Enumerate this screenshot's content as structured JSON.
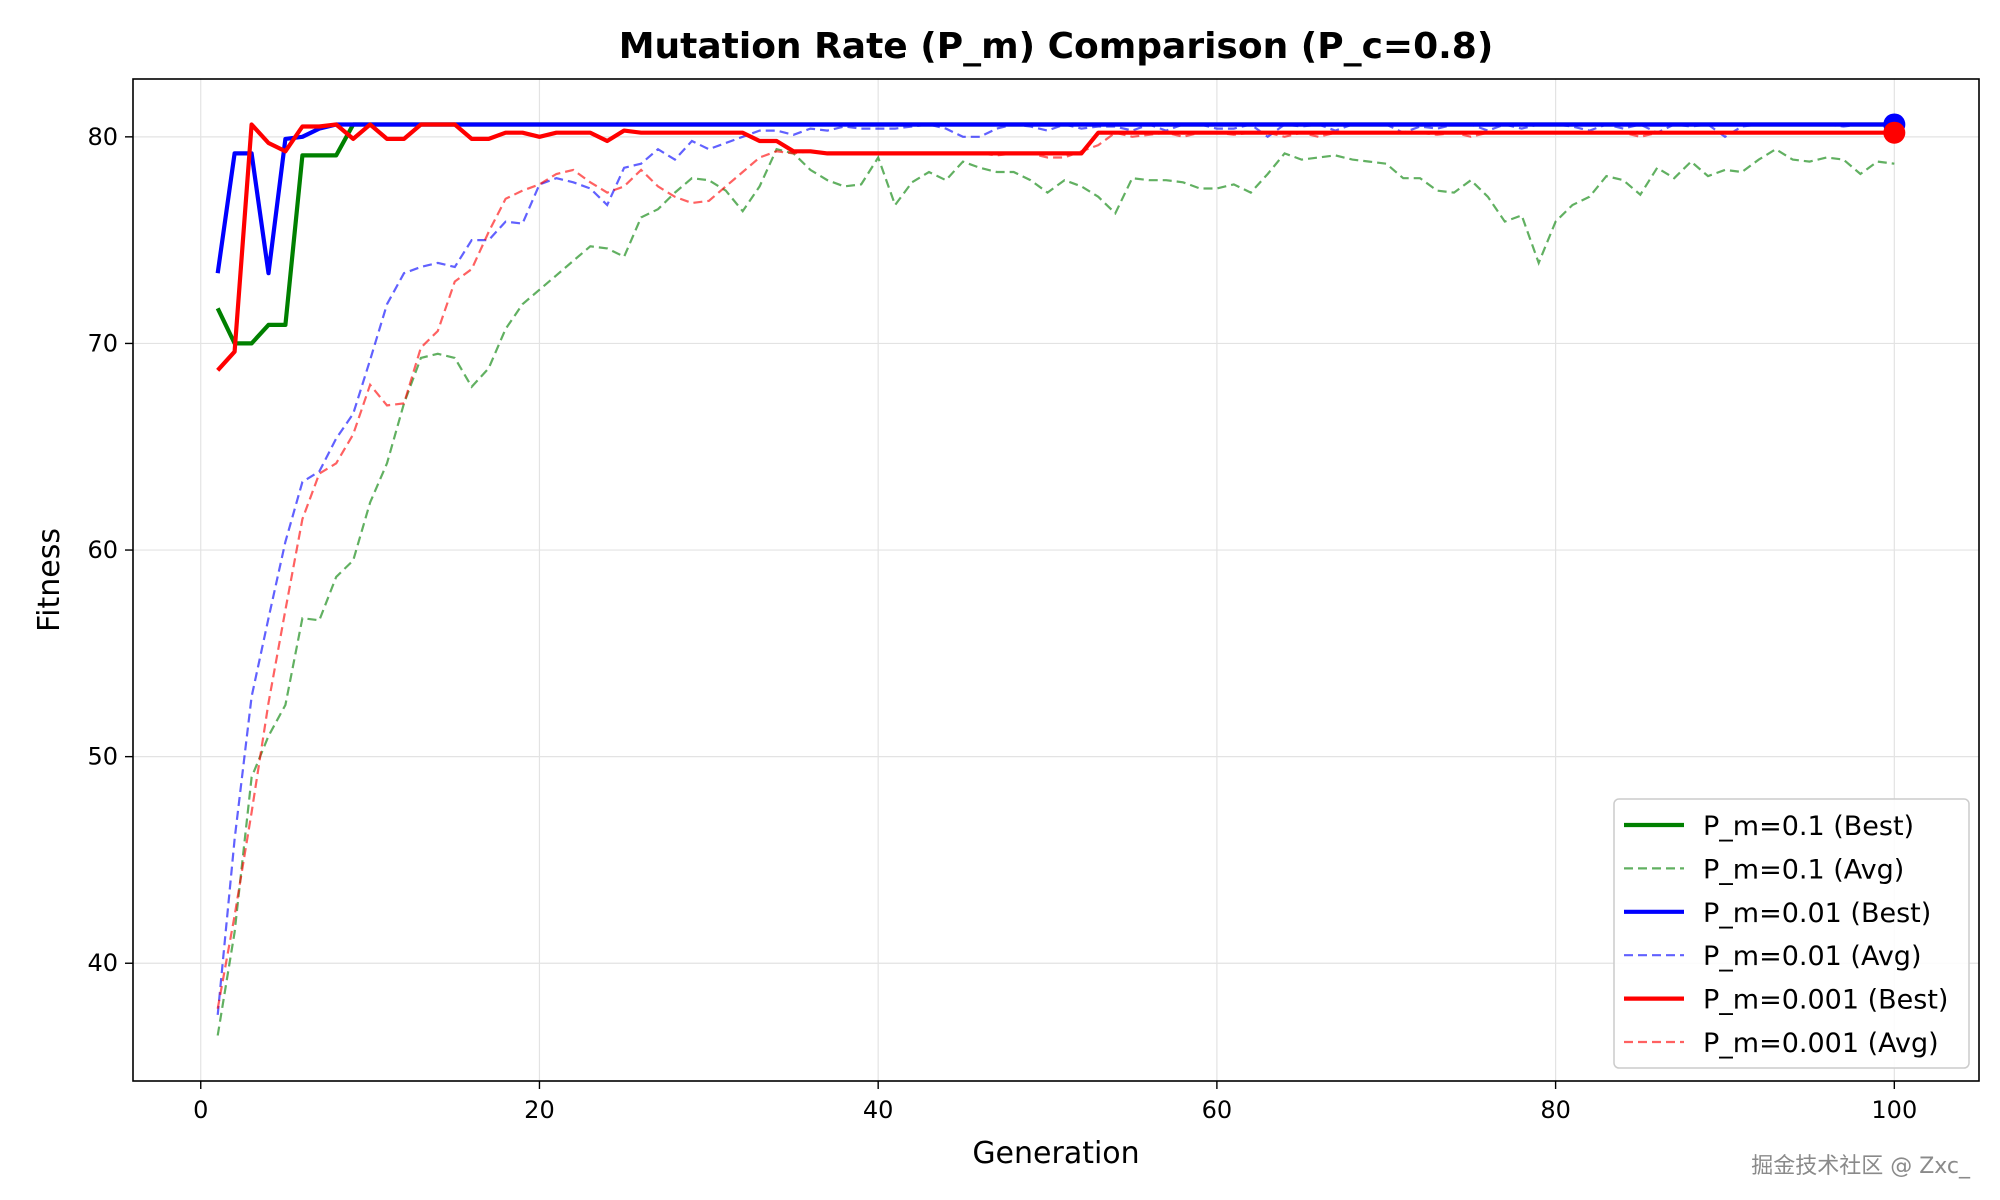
{
  "chart_data": {
    "type": "line",
    "title": "Mutation Rate (P_m) Comparison (P_c=0.8)",
    "xlabel": "Generation",
    "ylabel": "Fitness",
    "xlim": [
      -4,
      105
    ],
    "ylim": [
      34.3,
      82.8
    ],
    "x_ticks": [
      0,
      20,
      40,
      60,
      80,
      100
    ],
    "y_ticks": [
      40,
      50,
      60,
      70,
      80
    ],
    "grid": true,
    "legend_position": "lower-right",
    "colors": {
      "green": "#008000",
      "blue": "#0000ff",
      "red": "#ff0000"
    },
    "x": [
      1,
      2,
      3,
      4,
      5,
      6,
      7,
      8,
      9,
      10,
      11,
      12,
      13,
      14,
      15,
      16,
      17,
      18,
      19,
      20,
      21,
      22,
      23,
      24,
      25,
      26,
      27,
      28,
      29,
      30,
      31,
      32,
      33,
      34,
      35,
      36,
      37,
      38,
      39,
      40,
      41,
      42,
      43,
      44,
      45,
      46,
      47,
      48,
      49,
      50,
      51,
      52,
      53,
      54,
      55,
      56,
      57,
      58,
      59,
      60,
      61,
      62,
      63,
      64,
      65,
      66,
      67,
      68,
      69,
      70,
      71,
      72,
      73,
      74,
      75,
      76,
      77,
      78,
      79,
      80,
      81,
      82,
      83,
      84,
      85,
      86,
      87,
      88,
      89,
      90,
      91,
      92,
      93,
      94,
      95,
      96,
      97,
      98,
      99,
      100
    ],
    "series": [
      {
        "name": "P_m=0.1 (Best)",
        "color": "#008000",
        "style": "solid",
        "values": [
          71.7,
          70.0,
          70.0,
          70.9,
          70.9,
          79.1,
          79.1,
          79.1,
          80.6,
          80.6,
          80.6,
          80.6,
          80.6,
          80.6,
          80.6,
          80.6,
          80.6,
          80.6,
          80.6,
          80.6,
          80.6,
          80.6,
          80.6,
          80.6,
          80.6,
          80.6,
          80.6,
          80.6,
          80.6,
          80.6,
          80.6,
          80.6,
          80.6,
          80.6,
          80.6,
          80.6,
          80.6,
          80.6,
          80.6,
          80.6,
          80.6,
          80.6,
          80.6,
          80.6,
          80.6,
          80.6,
          80.6,
          80.6,
          80.6,
          80.6,
          80.6,
          80.6,
          80.6,
          80.6,
          80.6,
          80.6,
          80.6,
          80.6,
          80.6,
          80.6,
          80.6,
          80.6,
          80.6,
          80.6,
          80.6,
          80.6,
          80.6,
          80.6,
          80.6,
          80.6,
          80.6,
          80.6,
          80.6,
          80.6,
          80.6,
          80.6,
          80.6,
          80.6,
          80.6,
          80.6,
          80.6,
          80.6,
          80.6,
          80.6,
          80.6,
          80.6,
          80.6,
          80.6,
          80.6,
          80.6,
          80.6,
          80.6,
          80.6,
          80.6,
          80.6,
          80.6,
          80.6,
          80.6,
          80.6,
          80.6
        ]
      },
      {
        "name": "P_m=0.1 (Avg)",
        "color": "#008000",
        "style": "dashed",
        "values": [
          36.5,
          41.5,
          49.0,
          51.0,
          52.5,
          56.7,
          56.6,
          58.7,
          59.5,
          62.3,
          64.2,
          67.1,
          69.3,
          69.5,
          69.3,
          67.9,
          68.8,
          70.7,
          71.9,
          72.6,
          73.3,
          74.0,
          74.7,
          74.6,
          74.2,
          76.1,
          76.5,
          77.3,
          78.0,
          77.9,
          77.4,
          76.4,
          77.6,
          79.4,
          79.2,
          78.4,
          77.9,
          77.6,
          77.7,
          79.0,
          76.7,
          77.8,
          78.3,
          77.9,
          78.8,
          78.5,
          78.3,
          78.3,
          77.9,
          77.3,
          77.9,
          77.6,
          77.1,
          76.3,
          78.0,
          77.9,
          77.9,
          77.8,
          77.5,
          77.5,
          77.7,
          77.3,
          78.2,
          79.2,
          78.9,
          79.0,
          79.1,
          78.9,
          78.8,
          78.7,
          78.0,
          78.0,
          77.4,
          77.3,
          77.9,
          77.1,
          75.9,
          76.2,
          73.9,
          75.9,
          76.7,
          77.1,
          78.1,
          77.9,
          77.2,
          78.5,
          78.0,
          78.8,
          78.1,
          78.4,
          78.3,
          78.9,
          79.4,
          78.9,
          78.8,
          79.0,
          78.9,
          78.2,
          78.8,
          78.7
        ]
      },
      {
        "name": "P_m=0.01 (Best)",
        "color": "#0000ff",
        "style": "solid",
        "values": [
          73.4,
          79.2,
          79.2,
          73.4,
          79.9,
          80.0,
          80.4,
          80.6,
          80.6,
          80.6,
          80.6,
          80.6,
          80.6,
          80.6,
          80.6,
          80.6,
          80.6,
          80.6,
          80.6,
          80.6,
          80.6,
          80.6,
          80.6,
          80.6,
          80.6,
          80.6,
          80.6,
          80.6,
          80.6,
          80.6,
          80.6,
          80.6,
          80.6,
          80.6,
          80.6,
          80.6,
          80.6,
          80.6,
          80.6,
          80.6,
          80.6,
          80.6,
          80.6,
          80.6,
          80.6,
          80.6,
          80.6,
          80.6,
          80.6,
          80.6,
          80.6,
          80.6,
          80.6,
          80.6,
          80.6,
          80.6,
          80.6,
          80.6,
          80.6,
          80.6,
          80.6,
          80.6,
          80.6,
          80.6,
          80.6,
          80.6,
          80.6,
          80.6,
          80.6,
          80.6,
          80.6,
          80.6,
          80.6,
          80.6,
          80.6,
          80.6,
          80.6,
          80.6,
          80.6,
          80.6,
          80.6,
          80.6,
          80.6,
          80.6,
          80.6,
          80.6,
          80.6,
          80.6,
          80.6,
          80.6,
          80.6,
          80.6,
          80.6,
          80.6,
          80.6,
          80.6,
          80.6,
          80.6,
          80.6,
          80.6
        ]
      },
      {
        "name": "P_m=0.01 (Avg)",
        "color": "#0000ff",
        "style": "dashed",
        "values": [
          37.5,
          46.0,
          52.9,
          56.7,
          60.4,
          63.3,
          63.8,
          65.4,
          66.6,
          69.2,
          71.9,
          73.4,
          73.7,
          73.9,
          73.7,
          75.0,
          75.0,
          75.9,
          75.8,
          77.7,
          78.0,
          77.8,
          77.5,
          76.7,
          78.5,
          78.7,
          79.4,
          78.9,
          79.8,
          79.4,
          79.7,
          80.0,
          80.3,
          80.3,
          80.1,
          80.4,
          80.3,
          80.5,
          80.4,
          80.4,
          80.4,
          80.5,
          80.6,
          80.4,
          80.0,
          80.0,
          80.4,
          80.6,
          80.5,
          80.3,
          80.6,
          80.4,
          80.5,
          80.5,
          80.3,
          80.6,
          80.3,
          80.6,
          80.6,
          80.4,
          80.4,
          80.6,
          80.0,
          80.6,
          80.5,
          80.6,
          80.3,
          80.6,
          80.6,
          80.6,
          80.2,
          80.5,
          80.4,
          80.6,
          80.6,
          80.3,
          80.6,
          80.4,
          80.6,
          80.6,
          80.5,
          80.3,
          80.6,
          80.4,
          80.6,
          80.2,
          80.6,
          80.5,
          80.6,
          80.0,
          80.5,
          80.6,
          80.6,
          80.6,
          80.6,
          80.6,
          80.5,
          80.6,
          80.6,
          80.6
        ]
      },
      {
        "name": "P_m=0.001 (Best)",
        "color": "#ff0000",
        "style": "solid",
        "values": [
          68.7,
          69.6,
          80.6,
          79.7,
          79.3,
          80.5,
          80.5,
          80.6,
          79.9,
          80.6,
          79.9,
          79.9,
          80.6,
          80.6,
          80.6,
          79.9,
          79.9,
          80.2,
          80.2,
          80.0,
          80.2,
          80.2,
          80.2,
          79.8,
          80.3,
          80.2,
          80.2,
          80.2,
          80.2,
          80.2,
          80.2,
          80.2,
          79.8,
          79.8,
          79.3,
          79.3,
          79.2,
          79.2,
          79.2,
          79.2,
          79.2,
          79.2,
          79.2,
          79.2,
          79.2,
          79.2,
          79.2,
          79.2,
          79.2,
          79.2,
          79.2,
          79.2,
          80.2,
          80.2,
          80.2,
          80.2,
          80.2,
          80.2,
          80.2,
          80.2,
          80.2,
          80.2,
          80.2,
          80.2,
          80.2,
          80.2,
          80.2,
          80.2,
          80.2,
          80.2,
          80.2,
          80.2,
          80.2,
          80.2,
          80.2,
          80.2,
          80.2,
          80.2,
          80.2,
          80.2,
          80.2,
          80.2,
          80.2,
          80.2,
          80.2,
          80.2,
          80.2,
          80.2,
          80.2,
          80.2,
          80.2,
          80.2,
          80.2,
          80.2,
          80.2,
          80.2,
          80.2,
          80.2,
          80.2,
          80.2
        ]
      },
      {
        "name": "P_m=0.001 (Avg)",
        "color": "#ff0000",
        "style": "dashed",
        "values": [
          37.8,
          42.3,
          47.3,
          52.6,
          57.1,
          61.5,
          63.7,
          64.2,
          65.6,
          68.0,
          67.0,
          67.1,
          69.8,
          70.6,
          73.0,
          73.6,
          75.4,
          77.0,
          77.4,
          77.7,
          78.2,
          78.4,
          77.8,
          77.3,
          77.6,
          78.4,
          77.6,
          77.1,
          76.8,
          76.9,
          77.6,
          78.3,
          79.0,
          79.3,
          79.2,
          79.3,
          79.2,
          79.2,
          79.2,
          79.2,
          79.2,
          79.2,
          79.2,
          79.2,
          79.2,
          79.2,
          79.1,
          79.2,
          79.2,
          79.0,
          79.0,
          79.3,
          79.6,
          80.2,
          80.0,
          80.1,
          80.2,
          80.0,
          80.2,
          80.2,
          80.1,
          80.2,
          80.2,
          80.0,
          80.2,
          80.0,
          80.2,
          80.2,
          80.2,
          80.2,
          80.2,
          80.2,
          80.1,
          80.2,
          80.0,
          80.2,
          80.2,
          80.2,
          80.2,
          80.2,
          80.2,
          80.2,
          80.2,
          80.2,
          80.0,
          80.2,
          80.2,
          80.2,
          80.2,
          80.2,
          80.2,
          80.2,
          80.2,
          80.2,
          80.2,
          80.2,
          80.2,
          80.2,
          80.2,
          80.2
        ]
      }
    ],
    "final_markers": [
      {
        "series": "P_m=0.01 (Best)",
        "x": 100,
        "y": 80.6,
        "color": "#0000ff"
      },
      {
        "series": "P_m=0.001 (Best)",
        "x": 100,
        "y": 80.2,
        "color": "#ff0000"
      }
    ]
  },
  "watermark": "掘金技术社区 @ Zxc_"
}
